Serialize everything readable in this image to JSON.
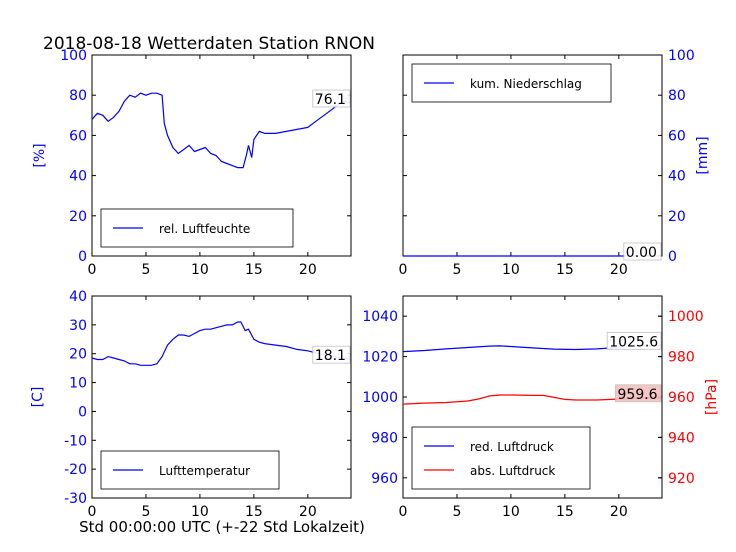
{
  "title": "2018-08-18 Wetterdaten Station RNON",
  "xlabel": "Std 00:00:00 UTC (+-22 Std Lokalzeit)",
  "colors": {
    "blue": "#0000ff",
    "red": "#ff0000",
    "last_bg_red": "#f4c0c0"
  },
  "chart_data": [
    {
      "type": "line",
      "ylabel": "[%]",
      "xlim": [
        0,
        24
      ],
      "ylim": [
        0,
        100
      ],
      "xticks": [
        0,
        5,
        10,
        15,
        20
      ],
      "yticks": [
        0,
        20,
        40,
        60,
        80,
        100
      ],
      "legend_loc": "lower-left",
      "last_value_label": "76.1",
      "series": [
        {
          "name": "rel. Luftfeuchte",
          "color": "#0000ff",
          "x": [
            0,
            0.5,
            1.0,
            1.5,
            2.0,
            2.5,
            3.0,
            3.5,
            4.0,
            4.5,
            5.0,
            5.5,
            6.0,
            6.5,
            6.7,
            7.0,
            7.5,
            8.0,
            8.5,
            9.0,
            9.5,
            10.0,
            10.5,
            11.0,
            11.5,
            12.0,
            12.5,
            13.0,
            13.5,
            14.0,
            14.3,
            14.5,
            14.8,
            15.0,
            15.5,
            16.0,
            17.0,
            18.0,
            19.0,
            20.0,
            20.5,
            21.0,
            21.5,
            22.0,
            22.5,
            23.0,
            23.5,
            23.9
          ],
          "y": [
            68,
            71,
            70,
            67,
            69,
            72,
            77,
            80,
            79,
            81,
            80,
            81,
            81,
            80,
            66,
            60,
            54,
            51,
            53,
            55,
            52,
            53,
            54,
            51,
            50,
            47,
            46,
            45,
            44,
            44,
            50,
            55,
            49,
            58,
            62,
            61,
            61,
            62,
            63,
            64,
            66,
            68,
            70,
            72,
            74,
            76,
            77,
            76.1
          ]
        }
      ]
    },
    {
      "type": "line",
      "ylabel": "[mm]",
      "xlim": [
        0,
        24
      ],
      "ylim": [
        0,
        100
      ],
      "xticks": [
        0,
        5,
        10,
        15,
        20
      ],
      "yticks": [
        0,
        20,
        40,
        60,
        80,
        100
      ],
      "legend_loc": "upper-left",
      "last_value_label": "0.00",
      "series": [
        {
          "name": "kum. Niederschlag",
          "color": "#0000ff",
          "x": [
            0,
            23.9
          ],
          "y": [
            0,
            0
          ]
        }
      ]
    },
    {
      "type": "line",
      "ylabel": "[C]",
      "xlim": [
        0,
        24
      ],
      "ylim": [
        -30,
        40
      ],
      "xticks": [
        0,
        5,
        10,
        15,
        20
      ],
      "yticks": [
        -30,
        -20,
        -10,
        0,
        10,
        20,
        30,
        40
      ],
      "legend_loc": "lower-left",
      "last_value_label": "18.1",
      "series": [
        {
          "name": "Lufttemperatur",
          "color": "#0000ff",
          "x": [
            0,
            0.5,
            1.0,
            1.5,
            2.0,
            2.5,
            3.0,
            3.5,
            4.0,
            4.5,
            5.0,
            5.5,
            6.0,
            6.5,
            7.0,
            7.5,
            8.0,
            8.5,
            9.0,
            9.5,
            10.0,
            10.5,
            11.0,
            11.5,
            12.0,
            12.5,
            13.0,
            13.5,
            13.8,
            14.2,
            14.5,
            15.0,
            15.5,
            16.0,
            17.0,
            18.0,
            19.0,
            20.0,
            21.0,
            22.0,
            23.0,
            23.9
          ],
          "y": [
            18.5,
            18,
            18,
            19,
            18.5,
            18,
            17.5,
            16.5,
            16.5,
            16,
            16,
            16,
            16.5,
            19,
            23,
            25,
            26.5,
            26.5,
            26,
            27,
            28,
            28.5,
            28.5,
            29,
            29.5,
            30,
            30,
            31,
            31,
            28,
            28.5,
            25,
            24,
            23.5,
            23,
            22.5,
            21.5,
            21,
            20,
            19.5,
            18.5,
            18.1
          ]
        }
      ]
    },
    {
      "type": "line",
      "ylabel": "[hPa]",
      "xlim": [
        0,
        24
      ],
      "ylim": [
        950,
        1050
      ],
      "y2lim": [
        910,
        1010
      ],
      "xticks": [
        0,
        5,
        10,
        15,
        20
      ],
      "yticks": [
        960,
        980,
        1000,
        1020,
        1040
      ],
      "y2ticks": [
        920,
        940,
        960,
        980,
        1000
      ],
      "legend_loc": "lower-left",
      "last_value_labels": [
        "1025.6",
        "959.6"
      ],
      "series": [
        {
          "name": "red. Luftdruck",
          "color": "#0000ff",
          "axis": "left",
          "x": [
            0,
            2,
            4,
            6,
            8,
            9,
            10,
            12,
            14,
            16,
            18,
            20,
            22,
            23.9
          ],
          "y": [
            1022.5,
            1023,
            1023.8,
            1024.5,
            1025.2,
            1025.3,
            1025,
            1024.3,
            1023.7,
            1023.5,
            1023.8,
            1024.6,
            1025.3,
            1025.6
          ]
        },
        {
          "name": "abs. Luftdruck",
          "color": "#ff0000",
          "axis": "right",
          "x": [
            0,
            2,
            4,
            6,
            7,
            8,
            9,
            10,
            12,
            13,
            14,
            15,
            16,
            18,
            20,
            22,
            23.9
          ],
          "y": [
            956.5,
            957,
            957.3,
            958,
            959,
            960.5,
            961,
            961,
            960.8,
            960.8,
            959.8,
            958.8,
            958.5,
            958.5,
            959,
            959.5,
            959.6
          ]
        }
      ]
    }
  ]
}
